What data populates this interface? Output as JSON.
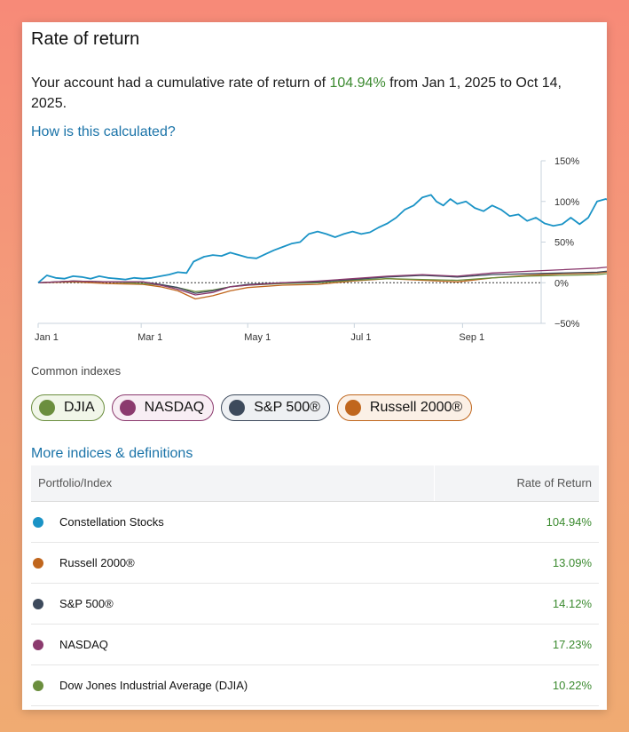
{
  "card": {
    "title": "Rate of return",
    "summary_prefix": "Your account had a cumulative rate of return of ",
    "summary_pct": "104.94%",
    "summary_suffix": " from Jan 1, 2025 to Oct 14, 2025.",
    "how_link": "How is this calculated?"
  },
  "chart_data": {
    "type": "line",
    "x_ticks": [
      "Jan 1",
      "Mar 1",
      "May 1",
      "Jul 1",
      "Sep 1"
    ],
    "y_ticks": [
      "150%",
      "100%",
      "50%",
      "0%",
      "−50%"
    ],
    "ylim": [
      -50,
      150
    ],
    "x_range": [
      "2025-01-01",
      "2025-10-14"
    ],
    "series": [
      {
        "name": "Constellation Stocks",
        "color": "#1a93c6",
        "points": [
          [
            0,
            0
          ],
          [
            5,
            9
          ],
          [
            10,
            6
          ],
          [
            15,
            5
          ],
          [
            20,
            8
          ],
          [
            25,
            7
          ],
          [
            30,
            5
          ],
          [
            35,
            8
          ],
          [
            40,
            6
          ],
          [
            45,
            5
          ],
          [
            50,
            4
          ],
          [
            55,
            6
          ],
          [
            60,
            5
          ],
          [
            65,
            6
          ],
          [
            70,
            8
          ],
          [
            75,
            10
          ],
          [
            80,
            13
          ],
          [
            85,
            12
          ],
          [
            89,
            26
          ],
          [
            95,
            32
          ],
          [
            100,
            34
          ],
          [
            105,
            33
          ],
          [
            110,
            37
          ],
          [
            115,
            34
          ],
          [
            120,
            31
          ],
          [
            125,
            30
          ],
          [
            130,
            35
          ],
          [
            135,
            40
          ],
          [
            140,
            44
          ],
          [
            145,
            48
          ],
          [
            150,
            50
          ],
          [
            155,
            60
          ],
          [
            160,
            63
          ],
          [
            165,
            60
          ],
          [
            170,
            56
          ],
          [
            175,
            60
          ],
          [
            180,
            63
          ],
          [
            185,
            60
          ],
          [
            190,
            62
          ],
          [
            195,
            68
          ],
          [
            200,
            73
          ],
          [
            205,
            80
          ],
          [
            210,
            90
          ],
          [
            215,
            95
          ],
          [
            220,
            105
          ],
          [
            225,
            108
          ],
          [
            228,
            100
          ],
          [
            232,
            95
          ],
          [
            236,
            103
          ],
          [
            240,
            97
          ],
          [
            245,
            100
          ],
          [
            250,
            92
          ],
          [
            255,
            88
          ],
          [
            260,
            95
          ],
          [
            265,
            90
          ],
          [
            270,
            82
          ],
          [
            275,
            84
          ],
          [
            280,
            76
          ],
          [
            285,
            80
          ],
          [
            290,
            73
          ],
          [
            295,
            70
          ],
          [
            300,
            72
          ],
          [
            305,
            80
          ],
          [
            310,
            72
          ],
          [
            315,
            80
          ],
          [
            320,
            100
          ],
          [
            325,
            103
          ],
          [
            330,
            98
          ],
          [
            335,
            104
          ],
          [
            340,
            105
          ]
        ]
      },
      {
        "name": "NASDAQ",
        "color": "#8b3a6e",
        "points": [
          [
            0,
            0
          ],
          [
            20,
            2
          ],
          [
            40,
            1
          ],
          [
            60,
            1
          ],
          [
            70,
            -3
          ],
          [
            80,
            -8
          ],
          [
            90,
            -15
          ],
          [
            100,
            -12
          ],
          [
            110,
            -5
          ],
          [
            120,
            -3
          ],
          [
            140,
            0
          ],
          [
            160,
            2
          ],
          [
            180,
            5
          ],
          [
            200,
            8
          ],
          [
            220,
            10
          ],
          [
            240,
            8
          ],
          [
            260,
            12
          ],
          [
            280,
            14
          ],
          [
            300,
            16
          ],
          [
            320,
            18
          ],
          [
            330,
            20
          ],
          [
            340,
            17
          ]
        ]
      },
      {
        "name": "S&P 500®",
        "color": "#3d4a5c",
        "points": [
          [
            0,
            0
          ],
          [
            20,
            2
          ],
          [
            40,
            1
          ],
          [
            60,
            1
          ],
          [
            70,
            -2
          ],
          [
            80,
            -6
          ],
          [
            90,
            -13
          ],
          [
            100,
            -10
          ],
          [
            110,
            -5
          ],
          [
            120,
            -2
          ],
          [
            140,
            0
          ],
          [
            160,
            1
          ],
          [
            180,
            4
          ],
          [
            200,
            7
          ],
          [
            220,
            9
          ],
          [
            240,
            7
          ],
          [
            260,
            10
          ],
          [
            280,
            11
          ],
          [
            300,
            12
          ],
          [
            320,
            13
          ],
          [
            330,
            15
          ],
          [
            340,
            14
          ]
        ]
      },
      {
        "name": "Russell 2000®",
        "color": "#c0661d",
        "points": [
          [
            0,
            0
          ],
          [
            20,
            1
          ],
          [
            40,
            -1
          ],
          [
            60,
            -2
          ],
          [
            70,
            -5
          ],
          [
            80,
            -10
          ],
          [
            90,
            -20
          ],
          [
            100,
            -16
          ],
          [
            110,
            -10
          ],
          [
            120,
            -6
          ],
          [
            140,
            -3
          ],
          [
            160,
            -2
          ],
          [
            180,
            2
          ],
          [
            200,
            5
          ],
          [
            220,
            3
          ],
          [
            240,
            1
          ],
          [
            260,
            6
          ],
          [
            280,
            9
          ],
          [
            300,
            11
          ],
          [
            320,
            12
          ],
          [
            330,
            14
          ],
          [
            340,
            13
          ]
        ]
      },
      {
        "name": "DJIA",
        "color": "#6b8e3e",
        "points": [
          [
            0,
            0
          ],
          [
            20,
            2
          ],
          [
            40,
            1
          ],
          [
            60,
            -1
          ],
          [
            70,
            -3
          ],
          [
            80,
            -6
          ],
          [
            90,
            -11
          ],
          [
            100,
            -9
          ],
          [
            110,
            -5
          ],
          [
            120,
            -3
          ],
          [
            140,
            -1
          ],
          [
            160,
            0
          ],
          [
            180,
            3
          ],
          [
            200,
            5
          ],
          [
            220,
            4
          ],
          [
            240,
            3
          ],
          [
            260,
            6
          ],
          [
            280,
            8
          ],
          [
            300,
            9
          ],
          [
            320,
            10
          ],
          [
            330,
            12
          ],
          [
            340,
            10
          ]
        ]
      }
    ]
  },
  "common_indexes_label": "Common indexes",
  "pills": [
    {
      "label": "DJIA",
      "color": "#6b8e3e",
      "bg": "#f1f6e9",
      "border": "#6b8e3e"
    },
    {
      "label": "NASDAQ",
      "color": "#8b3a6e",
      "bg": "#f8eef4",
      "border": "#8b3a6e"
    },
    {
      "label": "S&P 500®",
      "color": "#3d4a5c",
      "bg": "#eef0f3",
      "border": "#3d4a5c"
    },
    {
      "label": "Russell 2000®",
      "color": "#c0661d",
      "bg": "#fbf0e6",
      "border": "#c0661d"
    }
  ],
  "more_link": "More indices & definitions",
  "table": {
    "col1": "Portfolio/Index",
    "col2": "Rate of Return",
    "rows": [
      {
        "name": "Constellation Stocks",
        "value": "104.94%",
        "color": "#1a93c6"
      },
      {
        "name": "Russell 2000®",
        "value": "13.09%",
        "color": "#c0661d"
      },
      {
        "name": "S&P 500®",
        "value": "14.12%",
        "color": "#3d4a5c"
      },
      {
        "name": "NASDAQ",
        "value": "17.23%",
        "color": "#8b3a6e"
      },
      {
        "name": "Dow Jones Industrial Average (DJIA)",
        "value": "10.22%",
        "color": "#6b8e3e"
      }
    ]
  }
}
